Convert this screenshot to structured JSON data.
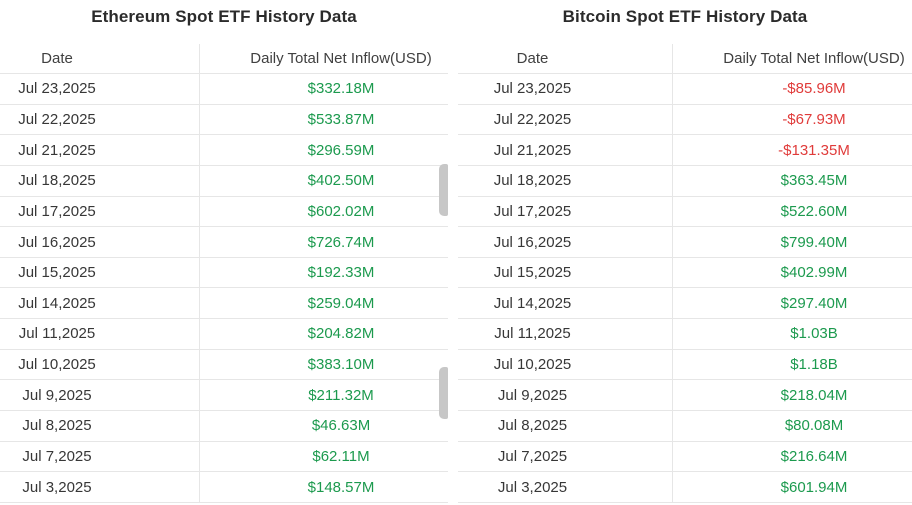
{
  "colors": {
    "positive": "#1c9a4e",
    "negative": "#e03b3a",
    "divider": "#e6e6e6",
    "title": "#2b2b2b",
    "header_text": "#404040",
    "date_text": "#373737",
    "scroll_thumb": "#c7c7c7",
    "background": "#ffffff"
  },
  "tables": [
    {
      "id": "ethereum",
      "title": "Ethereum Spot ETF History Data",
      "columns": [
        "Date",
        "Daily Total Net Inflow(USD)"
      ],
      "rows": [
        {
          "date": "Jul 23,2025",
          "inflow": "$332.18M",
          "sign": "positive"
        },
        {
          "date": "Jul 22,2025",
          "inflow": "$533.87M",
          "sign": "positive"
        },
        {
          "date": "Jul 21,2025",
          "inflow": "$296.59M",
          "sign": "positive"
        },
        {
          "date": "Jul 18,2025",
          "inflow": "$402.50M",
          "sign": "positive"
        },
        {
          "date": "Jul 17,2025",
          "inflow": "$602.02M",
          "sign": "positive"
        },
        {
          "date": "Jul 16,2025",
          "inflow": "$726.74M",
          "sign": "positive"
        },
        {
          "date": "Jul 15,2025",
          "inflow": "$192.33M",
          "sign": "positive"
        },
        {
          "date": "Jul 14,2025",
          "inflow": "$259.04M",
          "sign": "positive"
        },
        {
          "date": "Jul 11,2025",
          "inflow": "$204.82M",
          "sign": "positive"
        },
        {
          "date": "Jul 10,2025",
          "inflow": "$383.10M",
          "sign": "positive"
        },
        {
          "date": "Jul 9,2025",
          "inflow": "$211.32M",
          "sign": "positive"
        },
        {
          "date": "Jul 8,2025",
          "inflow": "$46.63M",
          "sign": "positive"
        },
        {
          "date": "Jul 7,2025",
          "inflow": "$62.11M",
          "sign": "positive"
        },
        {
          "date": "Jul 3,2025",
          "inflow": "$148.57M",
          "sign": "positive"
        }
      ]
    },
    {
      "id": "bitcoin",
      "title": "Bitcoin Spot ETF History Data",
      "columns": [
        "Date",
        "Daily Total Net Inflow(USD)"
      ],
      "rows": [
        {
          "date": "Jul 23,2025",
          "inflow": "-$85.96M",
          "sign": "negative"
        },
        {
          "date": "Jul 22,2025",
          "inflow": "-$67.93M",
          "sign": "negative"
        },
        {
          "date": "Jul 21,2025",
          "inflow": "-$131.35M",
          "sign": "negative"
        },
        {
          "date": "Jul 18,2025",
          "inflow": "$363.45M",
          "sign": "positive"
        },
        {
          "date": "Jul 17,2025",
          "inflow": "$522.60M",
          "sign": "positive"
        },
        {
          "date": "Jul 16,2025",
          "inflow": "$799.40M",
          "sign": "positive"
        },
        {
          "date": "Jul 15,2025",
          "inflow": "$402.99M",
          "sign": "positive"
        },
        {
          "date": "Jul 14,2025",
          "inflow": "$297.40M",
          "sign": "positive"
        },
        {
          "date": "Jul 11,2025",
          "inflow": "$1.03B",
          "sign": "positive"
        },
        {
          "date": "Jul 10,2025",
          "inflow": "$1.18B",
          "sign": "positive"
        },
        {
          "date": "Jul 9,2025",
          "inflow": "$218.04M",
          "sign": "positive"
        },
        {
          "date": "Jul 8,2025",
          "inflow": "$80.08M",
          "sign": "positive"
        },
        {
          "date": "Jul 7,2025",
          "inflow": "$216.64M",
          "sign": "positive"
        },
        {
          "date": "Jul 3,2025",
          "inflow": "$601.94M",
          "sign": "positive"
        }
      ]
    }
  ]
}
